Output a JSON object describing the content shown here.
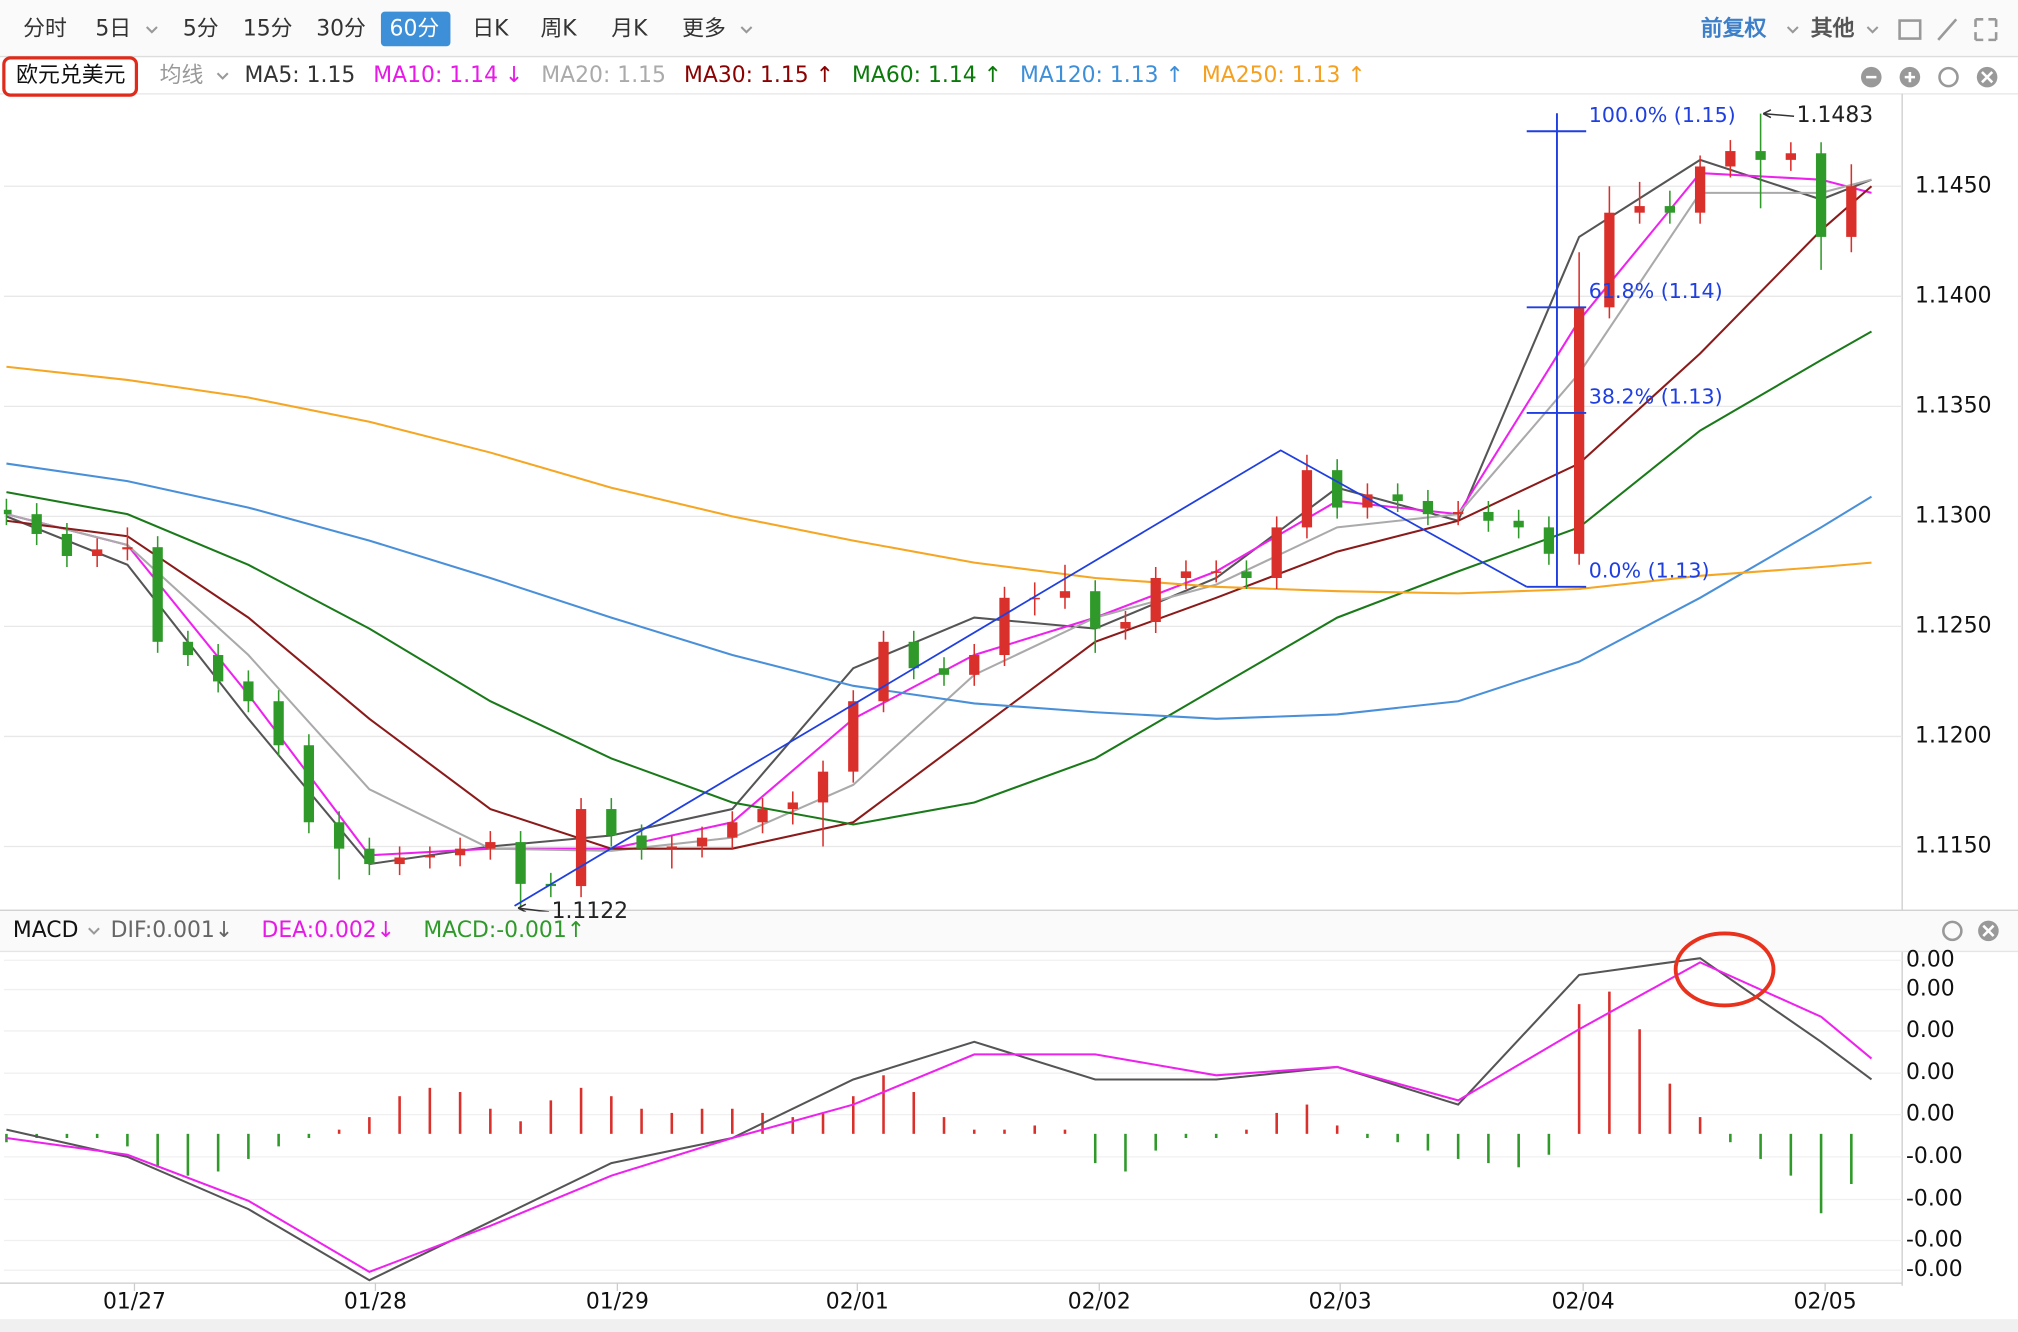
{
  "toolbar": {
    "periods": [
      "分时",
      "5日",
      "5分",
      "15分",
      "30分",
      "60分",
      "日K",
      "周K",
      "月K",
      "更多"
    ],
    "selected": 5,
    "right": [
      "前复权",
      "其他"
    ]
  },
  "panel": {
    "symbol": "欧元兑美元",
    "overlay_menu": "均线"
  },
  "chart_data": [
    {
      "type": "candlestick",
      "xlim": [
        0,
        186
      ],
      "xticks": [
        {
          "value": 12.7,
          "label": "01/27"
        },
        {
          "value": 36.6,
          "label": "01/28"
        },
        {
          "value": 60.6,
          "label": "01/29"
        },
        {
          "value": 84.4,
          "label": "02/01"
        },
        {
          "value": 108.4,
          "label": "02/02"
        },
        {
          "value": 132.3,
          "label": "02/03"
        },
        {
          "value": 156.4,
          "label": "02/04"
        },
        {
          "value": 180.4,
          "label": "02/05"
        }
      ],
      "ylim": [
        1.1121,
        1.1492
      ],
      "yticks": [
        {
          "value": 1.145,
          "label": "1.1450"
        },
        {
          "value": 1.14,
          "label": "1.1400"
        },
        {
          "value": 1.135,
          "label": "1.1350"
        },
        {
          "value": 1.13,
          "label": "1.1300"
        },
        {
          "value": 1.125,
          "label": "1.1250"
        },
        {
          "value": 1.12,
          "label": "1.1200"
        },
        {
          "value": 1.115,
          "label": "1.1150"
        }
      ],
      "grid": true,
      "up_color": "#d9302c",
      "down_color": "#2f9a2a",
      "x": [
        0,
        3,
        6,
        9,
        12,
        15,
        18,
        21,
        24,
        27,
        30,
        33,
        36,
        39,
        42,
        45,
        48,
        51,
        54,
        57,
        60,
        63,
        66,
        69,
        72,
        75,
        78,
        81,
        84,
        87,
        90,
        93,
        96,
        99,
        102,
        105,
        108,
        111,
        114,
        117,
        120,
        123,
        126,
        129,
        132,
        135,
        138,
        141,
        144,
        147,
        150,
        153,
        156,
        159,
        162,
        165,
        168,
        171,
        174,
        177,
        180,
        183
      ],
      "open": [
        1.1303,
        1.1301,
        1.1292,
        1.1282,
        1.1285,
        1.1286,
        1.1243,
        1.1237,
        1.1225,
        1.1216,
        1.1196,
        1.1161,
        1.1149,
        1.1142,
        1.1145,
        1.1146,
        1.1149,
        1.1152,
        1.1133,
        1.1132,
        1.1167,
        1.1155,
        1.1149,
        1.115,
        1.1154,
        1.1161,
        1.1167,
        1.117,
        1.1184,
        1.1216,
        1.1243,
        1.1231,
        1.1228,
        1.1237,
        1.1263,
        1.1263,
        1.1266,
        1.1249,
        1.1252,
        1.1272,
        1.1275,
        1.1275,
        1.1272,
        1.1295,
        1.1321,
        1.1304,
        1.131,
        1.1307,
        1.1301,
        1.1302,
        1.1298,
        1.1295,
        1.1283,
        1.1395,
        1.1438,
        1.1441,
        1.1438,
        1.1459,
        1.1466,
        1.1462,
        1.1465,
        1.1427
      ],
      "high": [
        1.1308,
        1.1306,
        1.1297,
        1.129,
        1.1295,
        1.1291,
        1.1248,
        1.1242,
        1.123,
        1.1221,
        1.1201,
        1.1166,
        1.1154,
        1.115,
        1.115,
        1.1154,
        1.1157,
        1.1157,
        1.1138,
        1.1172,
        1.1172,
        1.116,
        1.1155,
        1.1159,
        1.1166,
        1.1172,
        1.1175,
        1.1189,
        1.1221,
        1.1248,
        1.1248,
        1.1236,
        1.1242,
        1.1268,
        1.127,
        1.1278,
        1.1271,
        1.1257,
        1.1277,
        1.128,
        1.128,
        1.128,
        1.13,
        1.1328,
        1.1326,
        1.1315,
        1.1315,
        1.1312,
        1.1307,
        1.1307,
        1.1303,
        1.13,
        1.142,
        1.145,
        1.1452,
        1.1448,
        1.1464,
        1.1471,
        1.1483,
        1.147,
        1.147,
        1.146
      ],
      "low": [
        1.1296,
        1.1287,
        1.1277,
        1.1277,
        1.128,
        1.1238,
        1.1232,
        1.122,
        1.1211,
        1.1191,
        1.1156,
        1.1135,
        1.1137,
        1.1137,
        1.114,
        1.1141,
        1.1144,
        1.1122,
        1.1127,
        1.1127,
        1.115,
        1.1144,
        1.114,
        1.1145,
        1.1149,
        1.1156,
        1.116,
        1.115,
        1.1179,
        1.1211,
        1.1226,
        1.1223,
        1.1223,
        1.1232,
        1.1255,
        1.1258,
        1.1238,
        1.1244,
        1.1247,
        1.1267,
        1.127,
        1.1267,
        1.1267,
        1.129,
        1.1299,
        1.1299,
        1.1302,
        1.1296,
        1.1296,
        1.1293,
        1.129,
        1.1278,
        1.1278,
        1.139,
        1.1433,
        1.1433,
        1.1433,
        1.1454,
        1.144,
        1.1457,
        1.1412,
        1.142
      ],
      "close": [
        1.1301,
        1.1292,
        1.1282,
        1.1285,
        1.1286,
        1.1243,
        1.1237,
        1.1225,
        1.1216,
        1.1196,
        1.1161,
        1.1149,
        1.1142,
        1.1145,
        1.1146,
        1.1149,
        1.1152,
        1.1133,
        1.1132,
        1.1167,
        1.1155,
        1.1149,
        1.115,
        1.1154,
        1.1161,
        1.1167,
        1.117,
        1.1184,
        1.1216,
        1.1243,
        1.1231,
        1.1228,
        1.1237,
        1.1263,
        1.1263,
        1.1266,
        1.1249,
        1.1252,
        1.1272,
        1.1275,
        1.1275,
        1.1272,
        1.1295,
        1.1321,
        1.1304,
        1.131,
        1.1307,
        1.1301,
        1.1302,
        1.1298,
        1.1295,
        1.1283,
        1.1395,
        1.1438,
        1.1441,
        1.1438,
        1.1459,
        1.1466,
        1.1462,
        1.1465,
        1.1427,
        1.145
      ],
      "overlays": {
        "x": [
          0,
          12,
          24,
          36,
          48,
          60,
          72,
          84,
          96,
          108,
          120,
          132,
          144,
          156,
          168,
          180,
          185
        ],
        "series": [
          {
            "name": "MA5: 1.15",
            "color": "#555555",
            "legend_color": "#333333",
            "values": [
              1.13,
              1.1278,
              1.1208,
              1.1142,
              1.115,
              1.1155,
              1.1167,
              1.1231,
              1.1254,
              1.1249,
              1.1272,
              1.1313,
              1.1298,
              1.1427,
              1.1462,
              1.1444,
              1.1453
            ]
          },
          {
            "name": "MA10: 1.14 ↓",
            "color": "#ee22ee",
            "legend_color": "#e619e6",
            "values": [
              1.1301,
              1.1287,
              1.1219,
              1.1146,
              1.1149,
              1.1149,
              1.1161,
              1.1208,
              1.1237,
              1.1254,
              1.1275,
              1.1307,
              1.1301,
              1.1389,
              1.1456,
              1.1453,
              1.1447
            ]
          },
          {
            "name": "MA20: 1.15",
            "color": "#aaaaaa",
            "legend_color": "#aaaaaa",
            "values": [
              1.1301,
              1.1287,
              1.1237,
              1.1176,
              1.1149,
              1.1148,
              1.1154,
              1.1178,
              1.1228,
              1.1254,
              1.1269,
              1.1295,
              1.1301,
              1.1365,
              1.1447,
              1.1447,
              1.1453
            ]
          },
          {
            "name": "MA30: 1.15 ↑",
            "color": "#8b1a1a",
            "legend_color": "#8b0000",
            "values": [
              1.1298,
              1.1291,
              1.1254,
              1.1208,
              1.1167,
              1.1149,
              1.1149,
              1.1161,
              1.1202,
              1.1243,
              1.1263,
              1.1284,
              1.1298,
              1.1324,
              1.1374,
              1.143,
              1.145
            ]
          },
          {
            "name": "MA60: 1.14 ↑",
            "color": "#1a7a1a",
            "legend_color": "#0a7a0a",
            "values": [
              1.1311,
              1.1301,
              1.1278,
              1.1249,
              1.1216,
              1.119,
              1.117,
              1.116,
              1.117,
              1.119,
              1.1222,
              1.1254,
              1.1275,
              1.1295,
              1.1339,
              1.1371,
              1.1384
            ]
          },
          {
            "name": "MA120: 1.13 ↑",
            "color": "#4a90d9",
            "legend_color": "#3c8fd8",
            "values": [
              1.1324,
              1.1316,
              1.1304,
              1.1289,
              1.1272,
              1.1254,
              1.1237,
              1.1223,
              1.1215,
              1.1211,
              1.1208,
              1.121,
              1.1216,
              1.1234,
              1.1263,
              1.1295,
              1.1309
            ]
          },
          {
            "name": "MA250: 1.13 ↑",
            "color": "#f5a623",
            "legend_color": "#f5a020",
            "values": [
              1.1368,
              1.1362,
              1.1354,
              1.1343,
              1.1329,
              1.1313,
              1.13,
              1.1289,
              1.1279,
              1.1272,
              1.1268,
              1.1266,
              1.1265,
              1.1267,
              1.1273,
              1.1277,
              1.1279
            ]
          }
        ]
      },
      "trend_lines": [
        {
          "x": [
            50.4,
            126.4,
            150.8
          ],
          "y": [
            1.1123,
            1.133,
            1.1268
          ],
          "color": "#1f3fe0"
        }
      ],
      "fibonacci": {
        "color": "#1f3fe0",
        "x_start": 150.8,
        "x_end": 156.7,
        "x_line": 153.8,
        "levels": [
          {
            "value": 1.1475,
            "label": "100.0% (1.15)"
          },
          {
            "value": 1.1395,
            "label": "61.8% (1.14)"
          },
          {
            "value": 1.1347,
            "label": "38.2% (1.13)"
          },
          {
            "value": 1.1268,
            "label": "0.0% (1.13)"
          }
        ]
      },
      "annotations": [
        {
          "x": 174,
          "y": 1.1483
        },
        {
          "x": 50.5,
          "y": 1.1122
        }
      ]
    },
    {
      "type": "macd",
      "title": "MACD",
      "ylim": [
        -0.00357,
        0.0043
      ],
      "yticks": [
        {
          "value": 0.00415,
          "label": "0.00"
        },
        {
          "value": 0.00345,
          "label": "0.00"
        },
        {
          "value": 0.00246,
          "label": "0.00"
        },
        {
          "value": 0.00145,
          "label": "0.00"
        },
        {
          "value": 0.00046,
          "label": "0.00"
        },
        {
          "value": -0.00055,
          "label": "-0.00"
        },
        {
          "value": -0.00157,
          "label": "-0.00"
        },
        {
          "value": -0.00255,
          "label": "-0.00"
        },
        {
          "value": -0.00326,
          "label": "-0.00"
        }
      ],
      "x": [
        0,
        12,
        24,
        36,
        48,
        60,
        72,
        84,
        96,
        108,
        120,
        132,
        144,
        156,
        168,
        180,
        185
      ],
      "series": [
        {
          "name": "DIF:0.001↓",
          "color": "#555555",
          "legend_color": "#666666",
          "values": [
            0.0001,
            -0.00055,
            -0.0018,
            -0.0035,
            -0.0021,
            -0.0007,
            -0.0001,
            0.0013,
            0.0022,
            0.0013,
            0.0013,
            0.0016,
            0.0007,
            0.0038,
            0.0042,
            0.0022,
            0.0013
          ]
        },
        {
          "name": "DEA:0.002↓",
          "color": "#ee22ee",
          "legend_color": "#e619e6",
          "values": [
            -0.0001,
            -0.0005,
            -0.0016,
            -0.0033,
            -0.0022,
            -0.001,
            -0.0001,
            0.0007,
            0.0019,
            0.0019,
            0.0014,
            0.0016,
            0.0008,
            0.0025,
            0.0041,
            0.0028,
            0.0018
          ]
        }
      ],
      "histogram": {
        "name": "MACD:-0.001↑",
        "legend_color": "#2f9a2a",
        "up_color": "#d9302c",
        "down_color": "#2f9a2a",
        "x": [
          0,
          3,
          6,
          9,
          12,
          15,
          18,
          21,
          24,
          27,
          30,
          33,
          36,
          39,
          42,
          45,
          48,
          51,
          54,
          57,
          60,
          63,
          66,
          69,
          72,
          75,
          78,
          81,
          84,
          87,
          90,
          93,
          96,
          99,
          102,
          105,
          108,
          111,
          114,
          117,
          120,
          123,
          126,
          129,
          132,
          135,
          138,
          141,
          144,
          147,
          150,
          153,
          156,
          159,
          162,
          165,
          168,
          171,
          174,
          177,
          180,
          183
        ],
        "values": [
          -0.0002,
          -0.0001,
          -0.0001,
          -0.0001,
          -0.0003,
          -0.0008,
          -0.001,
          -0.0009,
          -0.0006,
          -0.0003,
          -0.0001,
          0.0001,
          0.0004,
          0.0009,
          0.0011,
          0.001,
          0.0006,
          0.0003,
          0.0008,
          0.0011,
          0.0009,
          0.0006,
          0.0005,
          0.0006,
          0.0006,
          0.0005,
          0.0004,
          0.0005,
          0.0009,
          0.0014,
          0.001,
          0.0004,
          0.0001,
          0.0001,
          0.0002,
          0.0001,
          -0.0007,
          -0.0009,
          -0.0004,
          -0.0001,
          -0.0001,
          0.0001,
          0.0005,
          0.0007,
          0.0002,
          -0.0001,
          -0.0002,
          -0.0004,
          -0.0006,
          -0.0007,
          -0.0008,
          -0.0005,
          0.0031,
          0.0034,
          0.0025,
          0.0012,
          0.0004,
          -0.0002,
          -0.0006,
          -0.001,
          -0.0019,
          -0.0012
        ]
      }
    }
  ]
}
